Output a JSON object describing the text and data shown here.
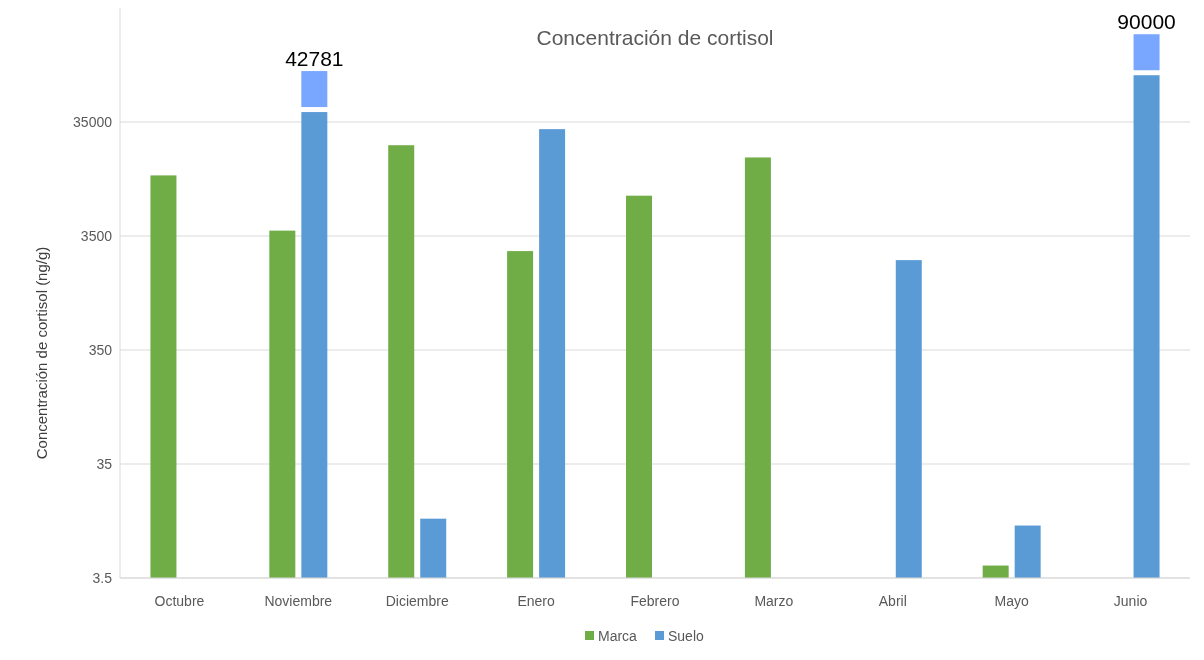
{
  "chart_data": {
    "type": "bar",
    "title": "Concentración de cortisol",
    "ylabel": "Concentración de cortisol (ng/g)",
    "categories": [
      "Octubre",
      "Noviembre",
      "Diciembre",
      "Enero",
      "Febrero",
      "Marzo",
      "Abril",
      "Mayo",
      "Junio"
    ],
    "series": [
      {
        "name": "Marca",
        "color": "#70ad47",
        "values": [
          11900,
          3900,
          21900,
          2580,
          7900,
          17100,
          null,
          4.5,
          null
        ]
      },
      {
        "name": "Suelo",
        "color": "#5b9bd5",
        "values": [
          null,
          42781,
          11.6,
          30300,
          null,
          null,
          2150,
          10.1,
          90000
        ],
        "value_labels": [
          null,
          "42781",
          null,
          null,
          null,
          null,
          null,
          null,
          "90000"
        ]
      }
    ],
    "log": true,
    "ylim": [
      3.5,
      350000
    ],
    "yticks": [
      3.5,
      35,
      350,
      3500,
      35000
    ],
    "grid": "y",
    "legend": "bottom"
  }
}
